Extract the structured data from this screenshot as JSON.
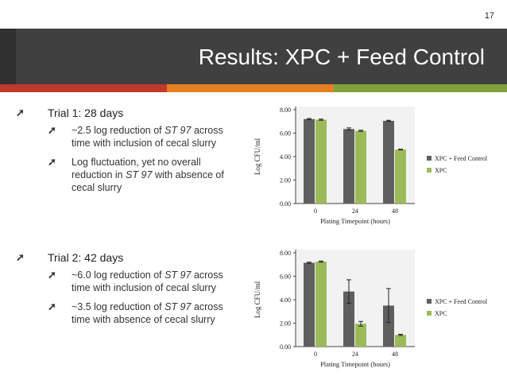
{
  "slide": {
    "number": "17",
    "title": "Results: XPC + Feed Control",
    "colors": {
      "title_bg": "#404040",
      "accent1": "#c0392b",
      "accent2": "#e67e22",
      "accent3": "#7fa23a",
      "series_dark": "#5f5f5f",
      "series_green": "#9bbb59"
    }
  },
  "bullets": {
    "trial1": {
      "label": "Trial 1: 28 days",
      "sub1": {
        "pre": "~2.5 log reduction of ",
        "em": "ST 97",
        "post": " across time with inclusion of cecal slurry"
      },
      "sub2": {
        "pre": "Log fluctuation, yet no overall reduction in ",
        "em": "ST 97",
        "post": " with absence of cecal slurry"
      }
    },
    "trial2": {
      "label": "Trial 2: 42 days",
      "sub1": {
        "pre": "~6.0 log reduction of ",
        "em": "ST 97",
        "post": " across time with inclusion of cecal slurry"
      },
      "sub2": {
        "pre": "~3.5 log reduction of ",
        "em": "ST 97",
        "post": " across time with absence of cecal slurry"
      }
    }
  },
  "chart_data": [
    {
      "type": "bar",
      "categories": [
        "0",
        "24",
        "48"
      ],
      "series": [
        {
          "name": "XPC + Feed Control",
          "values": [
            7.2,
            6.35,
            7.05
          ],
          "errors": [
            0.05,
            0.1,
            0.05
          ]
        },
        {
          "name": "XPC",
          "values": [
            7.15,
            6.2,
            4.6
          ],
          "errors": [
            0.05,
            0.05,
            0.03
          ]
        }
      ],
      "xlabel": "Plating Timepoint (hours)",
      "ylabel": "Log CFU/ml",
      "ylim": [
        0,
        8
      ],
      "yticks": [
        "0.00",
        "2.00",
        "4.00",
        "6.00",
        "8.00"
      ],
      "legend": "right",
      "grid": false
    },
    {
      "type": "bar",
      "categories": [
        "0",
        "24",
        "48"
      ],
      "series": [
        {
          "name": "XPC + Feed Control",
          "values": [
            7.15,
            4.7,
            3.5
          ],
          "errors": [
            0.05,
            1.0,
            1.45
          ]
        },
        {
          "name": "XPC",
          "values": [
            7.25,
            1.95,
            1.0
          ],
          "errors": [
            0.05,
            0.2,
            0.05
          ]
        }
      ],
      "xlabel": "Plating Timepoint (hours)",
      "ylabel": "Log CFU/ml",
      "ylim": [
        0,
        8
      ],
      "yticks": [
        "0.00",
        "2.00",
        "4.00",
        "6.00",
        "8.00"
      ],
      "legend": "right",
      "grid": false
    }
  ]
}
